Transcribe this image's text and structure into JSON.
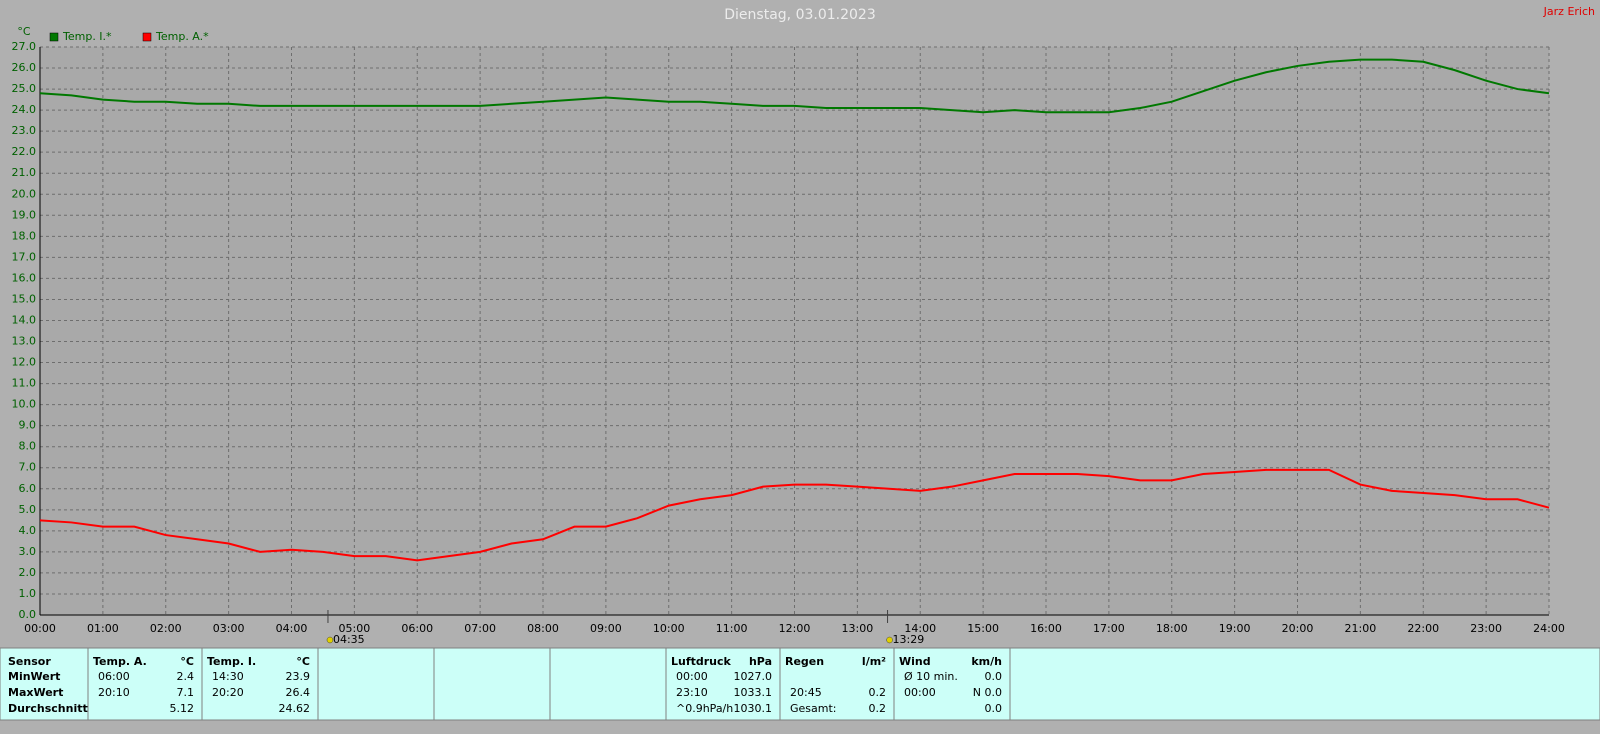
{
  "chart_data": {
    "type": "line",
    "title": "Dienstag, 03.01.2023",
    "y_label": "°C",
    "x": [
      0,
      0.5,
      1,
      1.5,
      2,
      2.5,
      3,
      3.5,
      4,
      4.5,
      5,
      5.5,
      6,
      6.5,
      7,
      7.5,
      8,
      8.5,
      9,
      9.5,
      10,
      10.5,
      11,
      11.5,
      12,
      12.5,
      13,
      13.5,
      14,
      14.5,
      15,
      15.5,
      16,
      16.5,
      17,
      17.5,
      18,
      18.5,
      19,
      19.5,
      20,
      20.5,
      21,
      21.5,
      22,
      22.5,
      23,
      23.5,
      24
    ],
    "series": [
      {
        "name": "Temp. I.*",
        "color": "#007800",
        "values": [
          24.8,
          24.7,
          24.5,
          24.4,
          24.4,
          24.3,
          24.3,
          24.2,
          24.2,
          24.2,
          24.2,
          24.2,
          24.2,
          24.2,
          24.2,
          24.3,
          24.4,
          24.5,
          24.6,
          24.5,
          24.4,
          24.4,
          24.3,
          24.2,
          24.2,
          24.1,
          24.1,
          24.1,
          24.1,
          24.0,
          23.9,
          24.0,
          23.9,
          23.9,
          23.9,
          24.1,
          24.4,
          24.9,
          25.4,
          25.8,
          26.1,
          26.3,
          26.4,
          26.4,
          26.3,
          25.9,
          25.4,
          25.0,
          24.8
        ]
      },
      {
        "name": "Temp. A.*",
        "color": "#ff0000",
        "values": [
          4.5,
          4.4,
          4.2,
          4.2,
          3.8,
          3.6,
          3.4,
          3.0,
          3.1,
          3.0,
          2.8,
          2.8,
          2.6,
          2.8,
          3.0,
          3.4,
          3.6,
          4.2,
          4.2,
          4.6,
          5.2,
          5.5,
          5.7,
          6.1,
          6.2,
          6.2,
          6.1,
          6.0,
          5.9,
          6.1,
          6.4,
          6.7,
          6.7,
          6.7,
          6.6,
          6.4,
          6.4,
          6.7,
          6.8,
          6.9,
          6.9,
          6.9,
          6.2,
          5.9,
          5.8,
          5.7,
          5.5,
          5.5,
          5.1
        ]
      }
    ],
    "xlim": [
      0,
      24
    ],
    "xticks": [
      {
        "value": 0,
        "label": "00:00"
      },
      {
        "value": 1,
        "label": "01:00"
      },
      {
        "value": 2,
        "label": "02:00"
      },
      {
        "value": 3,
        "label": "03:00"
      },
      {
        "value": 4,
        "label": "04:00"
      },
      {
        "value": 5,
        "label": "05:00"
      },
      {
        "value": 6,
        "label": "06:00"
      },
      {
        "value": 7,
        "label": "07:00"
      },
      {
        "value": 8,
        "label": "08:00"
      },
      {
        "value": 9,
        "label": "09:00"
      },
      {
        "value": 10,
        "label": "10:00"
      },
      {
        "value": 11,
        "label": "11:00"
      },
      {
        "value": 12,
        "label": "12:00"
      },
      {
        "value": 13,
        "label": "13:00"
      },
      {
        "value": 14,
        "label": "14:00"
      },
      {
        "value": 15,
        "label": "15:00"
      },
      {
        "value": 16,
        "label": "16:00"
      },
      {
        "value": 17,
        "label": "17:00"
      },
      {
        "value": 18,
        "label": "18:00"
      },
      {
        "value": 19,
        "label": "19:00"
      },
      {
        "value": 20,
        "label": "20:00"
      },
      {
        "value": 21,
        "label": "21:00"
      },
      {
        "value": 22,
        "label": "22:00"
      },
      {
        "value": 23,
        "label": "23:00"
      },
      {
        "value": 24,
        "label": "24:00"
      }
    ],
    "ylim": [
      0,
      27
    ],
    "yticks": [
      {
        "value": 0,
        "label": "0.0"
      },
      {
        "value": 1,
        "label": "1.0"
      },
      {
        "value": 2,
        "label": "2.0"
      },
      {
        "value": 3,
        "label": "3.0"
      },
      {
        "value": 4,
        "label": "4.0"
      },
      {
        "value": 5,
        "label": "5.0"
      },
      {
        "value": 6,
        "label": "6.0"
      },
      {
        "value": 7,
        "label": "7.0"
      },
      {
        "value": 8,
        "label": "8.0"
      },
      {
        "value": 9,
        "label": "9.0"
      },
      {
        "value": 10,
        "label": "10.0"
      },
      {
        "value": 11,
        "label": "11.0"
      },
      {
        "value": 12,
        "label": "12.0"
      },
      {
        "value": 13,
        "label": "13.0"
      },
      {
        "value": 14,
        "label": "14.0"
      },
      {
        "value": 15,
        "label": "15.0"
      },
      {
        "value": 16,
        "label": "16.0"
      },
      {
        "value": 17,
        "label": "17.0"
      },
      {
        "value": 18,
        "label": "18.0"
      },
      {
        "value": 19,
        "label": "19.0"
      },
      {
        "value": 20,
        "label": "20.0"
      },
      {
        "value": 21,
        "label": "21.0"
      },
      {
        "value": 22,
        "label": "22.0"
      },
      {
        "value": 23,
        "label": "23.0"
      },
      {
        "value": 24,
        "label": "24.0"
      },
      {
        "value": 25,
        "label": "25.0"
      },
      {
        "value": 26,
        "label": "26.0"
      },
      {
        "value": 27,
        "label": "27.0"
      }
    ],
    "grid": true,
    "legend": "top-left",
    "markers": [
      {
        "x": 4.58,
        "label": "04:35"
      },
      {
        "x": 13.48,
        "label": "13:29"
      }
    ]
  },
  "header": {
    "owner": "Jarz Erich"
  },
  "table": {
    "row_labels": [
      "Sensor",
      "MinWert",
      "MaxWert",
      "Durchschnitt"
    ],
    "sections": [
      {
        "name": "Temp. A.",
        "unit": "°C",
        "rows": [
          [
            "06:00",
            "2.4"
          ],
          [
            "20:10",
            "7.1"
          ],
          [
            null,
            "5.12"
          ]
        ]
      },
      {
        "name": "Temp. I.",
        "unit": "°C",
        "rows": [
          [
            "14:30",
            "23.9"
          ],
          [
            "20:20",
            "26.4"
          ],
          [
            null,
            "24.62"
          ]
        ]
      },
      {
        "name": "Luftdruck",
        "unit": "hPa",
        "rows": [
          [
            "00:00",
            "1027.0"
          ],
          [
            "23:10",
            "1033.1"
          ],
          [
            "^0.9hPa/h",
            "1030.1"
          ]
        ]
      },
      {
        "name": "Regen",
        "unit": "l/m²",
        "rows": [
          [
            null,
            null
          ],
          [
            "20:45",
            "0.2"
          ],
          [
            "Gesamt:",
            "0.2"
          ]
        ]
      },
      {
        "name": "Wind",
        "unit": "km/h",
        "rows": [
          [
            "Ø 10 min.",
            "0.0"
          ],
          [
            "00:00",
            "N 0.0"
          ],
          [
            null,
            "0.0"
          ]
        ]
      }
    ]
  }
}
